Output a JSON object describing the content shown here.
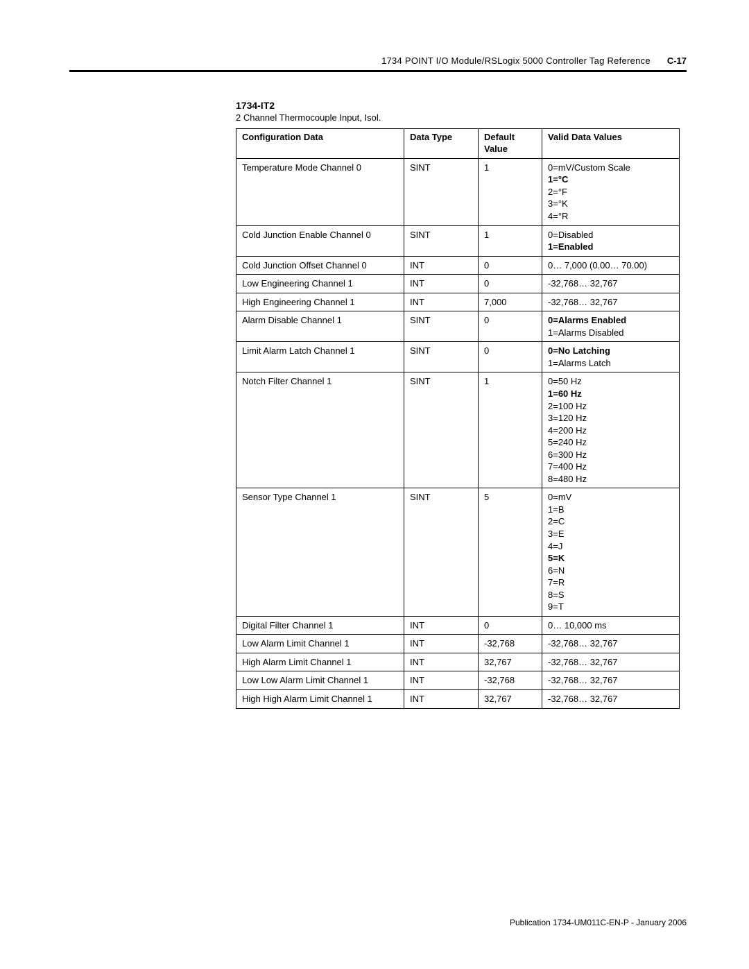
{
  "header": {
    "title": "1734 POINT I/O Module/RSLogix 5000 Controller Tag Reference",
    "page": "C-17"
  },
  "module": {
    "name": "1734-IT2",
    "desc": "2 Channel Thermocouple Input, Isol."
  },
  "table": {
    "headers": {
      "config": "Configuration Data",
      "type": "Data Type",
      "default": "Default Value",
      "valid": "Valid Data Values"
    },
    "rows": [
      {
        "config": "Temperature Mode Channel 0",
        "type": "SINT",
        "default": "1",
        "valid": [
          {
            "t": "0=mV/Custom Scale"
          },
          {
            "t": "1=°C",
            "b": true
          },
          {
            "t": "2=°F"
          },
          {
            "t": "3=°K"
          },
          {
            "t": "4=°R"
          }
        ]
      },
      {
        "config": "Cold Junction Enable Channel 0",
        "type": "SINT",
        "default": "1",
        "valid": [
          {
            "t": "0=Disabled"
          },
          {
            "t": "1=Enabled",
            "b": true
          }
        ]
      },
      {
        "config": "Cold Junction Offset Channel 0",
        "type": "INT",
        "default": "0",
        "valid": [
          {
            "t": "0… 7,000 (0.00… 70.00)"
          }
        ]
      },
      {
        "config": "Low Engineering Channel 1",
        "type": "INT",
        "default": "0",
        "valid": [
          {
            "t": "-32,768… 32,767"
          }
        ]
      },
      {
        "config": "High Engineering Channel 1",
        "type": "INT",
        "default": "7,000",
        "valid": [
          {
            "t": "-32,768… 32,767"
          }
        ]
      },
      {
        "config": "Alarm Disable Channel 1",
        "type": "SINT",
        "default": "0",
        "valid": [
          {
            "t": "0=Alarms Enabled",
            "b": true
          },
          {
            "t": "1=Alarms Disabled"
          }
        ]
      },
      {
        "config": "Limit Alarm Latch Channel 1",
        "type": "SINT",
        "default": "0",
        "valid": [
          {
            "t": "0=No Latching",
            "b": true
          },
          {
            "t": "1=Alarms Latch"
          }
        ]
      },
      {
        "config": "Notch Filter Channel 1",
        "type": "SINT",
        "default": "1",
        "valid": [
          {
            "t": "0=50 Hz"
          },
          {
            "t": "1=60 Hz",
            "b": true
          },
          {
            "t": "2=100 Hz"
          },
          {
            "t": "3=120 Hz"
          },
          {
            "t": "4=200 Hz"
          },
          {
            "t": "5=240 Hz"
          },
          {
            "t": "6=300 Hz"
          },
          {
            "t": "7=400 Hz"
          },
          {
            "t": "8=480 Hz"
          }
        ]
      },
      {
        "config": "Sensor Type Channel 1",
        "type": "SINT",
        "default": "5",
        "valid": [
          {
            "t": "0=mV"
          },
          {
            "t": "1=B"
          },
          {
            "t": "2=C"
          },
          {
            "t": "3=E"
          },
          {
            "t": "4=J"
          },
          {
            "t": "5=K",
            "b": true
          },
          {
            "t": "6=N"
          },
          {
            "t": "7=R"
          },
          {
            "t": "8=S"
          },
          {
            "t": "9=T"
          }
        ]
      },
      {
        "config": "Digital Filter Channel 1",
        "type": "INT",
        "default": "0",
        "valid": [
          {
            "t": "0… 10,000 ms"
          }
        ]
      },
      {
        "config": "Low Alarm Limit Channel 1",
        "type": "INT",
        "default": "-32,768",
        "valid": [
          {
            "t": "-32,768… 32,767"
          }
        ]
      },
      {
        "config": "High Alarm Limit Channel 1",
        "type": "INT",
        "default": "32,767",
        "valid": [
          {
            "t": "-32,768… 32,767"
          }
        ]
      },
      {
        "config": "Low Low Alarm Limit Channel 1",
        "type": "INT",
        "default": "-32,768",
        "valid": [
          {
            "t": "-32,768… 32,767"
          }
        ]
      },
      {
        "config": "High High Alarm Limit Channel 1",
        "type": "INT",
        "default": "32,767",
        "valid": [
          {
            "t": "-32,768… 32,767"
          }
        ]
      }
    ]
  },
  "footer": "Publication 1734-UM011C-EN-P - January 2006"
}
